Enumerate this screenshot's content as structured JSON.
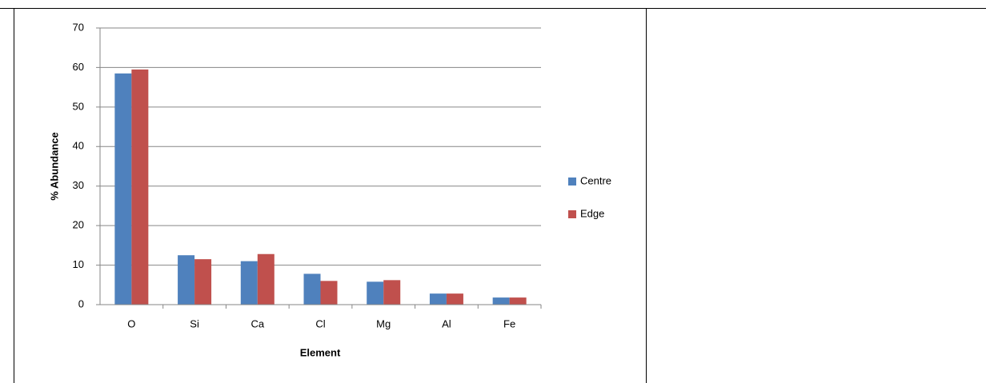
{
  "chart_data": {
    "type": "bar",
    "x_label": "Element",
    "y_label": "% Abundance",
    "categories": [
      "O",
      "Si",
      "Ca",
      "Cl",
      "Mg",
      "Al",
      "Fe"
    ],
    "series": [
      {
        "name": "Centre",
        "color": "#4f81bd",
        "values": [
          58.5,
          12.5,
          11,
          7.8,
          5.8,
          2.8,
          1.8
        ]
      },
      {
        "name": "Edge",
        "color": "#c0504d",
        "values": [
          59.5,
          11.5,
          12.8,
          6,
          6.2,
          2.8,
          1.8
        ]
      }
    ],
    "ylim": [
      0,
      70
    ],
    "yticks": [
      0,
      10,
      20,
      30,
      40,
      50,
      60,
      70
    ],
    "grid": true,
    "legend": "right"
  }
}
